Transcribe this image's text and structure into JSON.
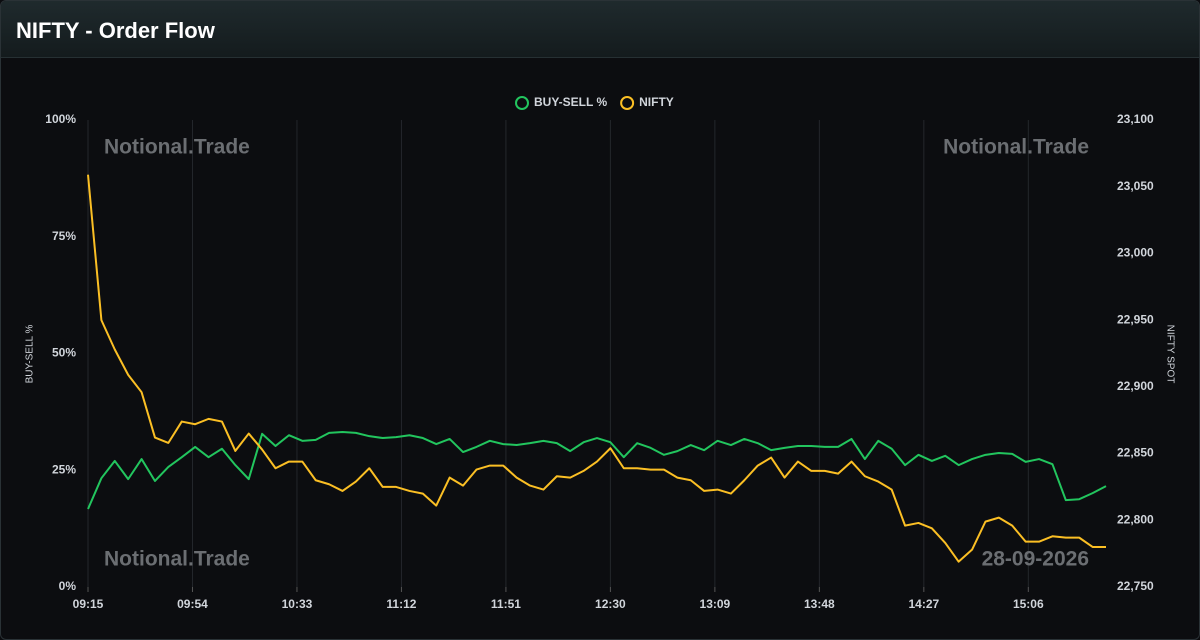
{
  "header": {
    "title": "NIFTY - Order Flow"
  },
  "chart_data": {
    "type": "line",
    "watermarks": [
      "Notional.Trade",
      "Notional.Trade",
      "Notional.Trade"
    ],
    "date_label": "28-09-2026",
    "ylabel": "BUY-SELL %",
    "y2label": "NIFTY SPOT",
    "x": [
      555,
      560,
      565,
      570,
      575,
      580,
      585,
      590,
      595,
      600,
      605,
      610,
      615,
      620,
      625,
      630,
      635,
      640,
      645,
      650,
      655,
      660,
      665,
      670,
      675,
      680,
      685,
      690,
      695,
      700,
      705,
      710,
      715,
      720,
      725,
      730,
      735,
      740,
      745,
      750,
      755,
      760,
      765,
      770,
      775,
      780,
      785,
      790,
      795,
      800,
      805,
      810,
      815,
      820,
      825,
      830,
      835,
      840,
      845,
      850,
      855,
      860,
      865,
      870,
      875,
      880,
      885,
      890,
      895,
      900,
      905,
      910,
      915,
      920,
      925,
      930,
      935
    ],
    "xlim": [
      555,
      935
    ],
    "xticks": [
      {
        "value": 555,
        "label": "09:15"
      },
      {
        "value": 594,
        "label": "09:54"
      },
      {
        "value": 633,
        "label": "10:33"
      },
      {
        "value": 672,
        "label": "11:12"
      },
      {
        "value": 711,
        "label": "11:51"
      },
      {
        "value": 750,
        "label": "12:30"
      },
      {
        "value": 789,
        "label": "13:09"
      },
      {
        "value": 828,
        "label": "13:48"
      },
      {
        "value": 867,
        "label": "14:27"
      },
      {
        "value": 906,
        "label": "15:06"
      }
    ],
    "ylim": [
      0,
      100
    ],
    "yticks": [
      {
        "value": 0,
        "label": "0%"
      },
      {
        "value": 25,
        "label": "25%"
      },
      {
        "value": 50,
        "label": "50%"
      },
      {
        "value": 75,
        "label": "75%"
      },
      {
        "value": 100,
        "label": "100%"
      }
    ],
    "y2lim": [
      22750,
      23100
    ],
    "y2ticks": [
      {
        "value": 22750,
        "label": "22,750"
      },
      {
        "value": 22800,
        "label": "22,800"
      },
      {
        "value": 22850,
        "label": "22,850"
      },
      {
        "value": 22900,
        "label": "22,900"
      },
      {
        "value": 22950,
        "label": "22,950"
      },
      {
        "value": 23000,
        "label": "23,000"
      },
      {
        "value": 23050,
        "label": "23,050"
      },
      {
        "value": 23100,
        "label": "23,100"
      }
    ],
    "xgrid": true,
    "legend": "top",
    "series": [
      {
        "name": "BUY-SELL %",
        "color": "#22c55e",
        "axis": "y",
        "values": [
          16.7,
          23.3,
          27,
          23.1,
          27.4,
          22.7,
          25.7,
          27.8,
          30,
          27.8,
          29.6,
          26.1,
          23.1,
          32.8,
          30.2,
          32.5,
          31.3,
          31.5,
          33,
          33.2,
          33,
          32.3,
          31.9,
          32.1,
          32.5,
          31.9,
          30.6,
          31.7,
          28.9,
          30,
          31.3,
          30.6,
          30.4,
          30.8,
          31.3,
          30.8,
          29.1,
          31,
          31.9,
          31,
          27.8,
          30.8,
          29.8,
          28.3,
          29.1,
          30.4,
          29.3,
          31.3,
          30.4,
          31.7,
          30.8,
          29.3,
          29.8,
          30.2,
          30.2,
          30,
          30,
          31.7,
          27.4,
          31.3,
          29.6,
          26.1,
          28.3,
          27,
          28.1,
          26.1,
          27.4,
          28.3,
          28.7,
          28.5,
          26.8,
          27.4,
          26.3,
          18.6,
          18.8,
          20.1,
          21.6
        ]
      },
      {
        "name": "NIFTY",
        "color": "#fbbf24",
        "axis": "y2",
        "values": [
          23059,
          22950,
          22928,
          22909,
          22896,
          22862,
          22858,
          22874,
          22872,
          22876,
          22874,
          22852,
          22865,
          22853,
          22839,
          22844,
          22844,
          22830,
          22827,
          22822,
          22829,
          22839,
          22825,
          22825,
          22822,
          22820,
          22811,
          22832,
          22826,
          22838,
          22841,
          22841,
          22832,
          22826,
          22823,
          22833,
          22832,
          22837,
          22844,
          22854,
          22839,
          22839,
          22838,
          22838,
          22832,
          22830,
          22822,
          22823,
          22820,
          22830,
          22841,
          22847,
          22832,
          22844,
          22837,
          22837,
          22835,
          22844,
          22833,
          22829,
          22823,
          22796,
          22798,
          22794,
          22783,
          22769,
          22778,
          22799,
          22802,
          22796,
          22784,
          22784,
          22788,
          22787,
          22787,
          22780,
          22780
        ]
      }
    ]
  }
}
